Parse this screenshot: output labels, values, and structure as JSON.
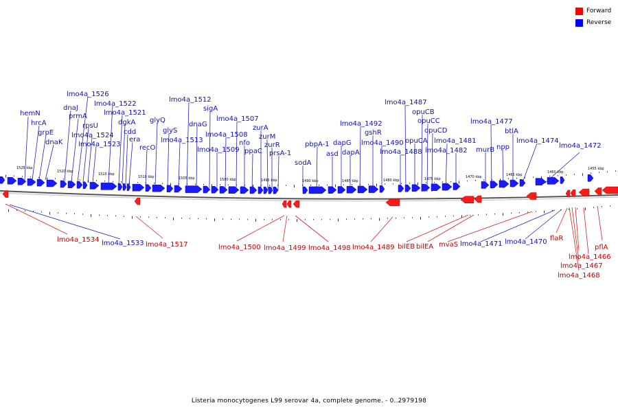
{
  "legend": {
    "forward_label": "Forward",
    "reverse_label": "Reverse",
    "forward_color": "#ff0000",
    "reverse_color": "#0000ff"
  },
  "caption": "Listeria monocytogenes L99 serovar 4a, complete genome. - 0..2979198",
  "ticks": [
    "1525 kbp",
    "1520 kbp",
    "1515 kbp",
    "1510 kbp",
    "1505 kbp",
    "1500 kbp",
    "1495 kbp",
    "1490 kbp",
    "1485 kbp",
    "1480 kbp",
    "1475 kbp",
    "1470 kbp",
    "1465 kbp",
    "1460 kbp",
    "1455 kbp"
  ],
  "reverse_genes": [
    "hemN",
    "hrcA",
    "grpE",
    "dnaK",
    "dnaJ",
    "prmA",
    "rpsU",
    "lmo4a_1526",
    "lmo4a_1524",
    "lmo4a_1523",
    "lmo4a_1522",
    "lmo4a_1521",
    "dgkA",
    "cdd",
    "era",
    "recO",
    "glyQ",
    "glyS",
    "lmo4a_1513",
    "lmo4a_1512",
    "dnaG",
    "sigA",
    "lmo4a_1509",
    "lmo4a_1508",
    "lmo4a_1507",
    "nfo",
    "ppaC",
    "zurA",
    "zurM",
    "zurR",
    "prsA-1",
    "sodA",
    "pbpA-1",
    "asd",
    "dapG",
    "dapA",
    "lmo4a_1492",
    "gshR",
    "lmo4a_1490",
    "lmo4a_1488",
    "lmo4a_1487",
    "opuCA",
    "opuCB",
    "opuCC",
    "opuCD",
    "lmo4a_1482",
    "lmo4a_1481",
    "murB",
    "lmo4a_1477",
    "npp",
    "btlA",
    "lmo4a_1474",
    "lmo4a_1472",
    "lmo4a_1533",
    "lmo4a_1471",
    "lmo4a_1470"
  ],
  "forward_genes": [
    "lmo4a_1534",
    "lmo4a_1517",
    "lmo4a_1500",
    "lmo4a_1499",
    "lmo4a_1498",
    "lmo4a_1489",
    "bilEB",
    "bilEA",
    "mvaS",
    "flaR",
    "pflA",
    "lmo4a_1466",
    "lmo4a_1467",
    "lmo4a_1468"
  ]
}
